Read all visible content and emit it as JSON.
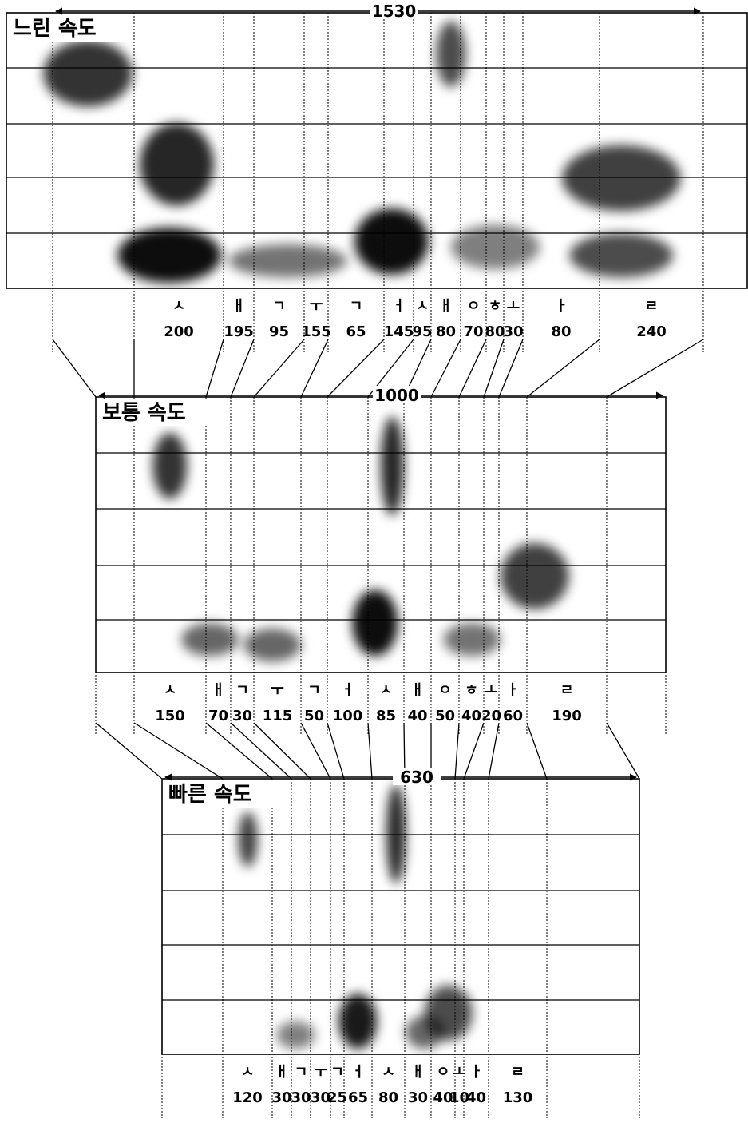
{
  "panels": [
    {
      "id": "slow",
      "title": "느린 속도",
      "total": "1530",
      "segments": [
        {
          "label": "ㅅ",
          "dur": "200"
        },
        {
          "label": "ㅐ",
          "dur": "195"
        },
        {
          "label": "ㄱ",
          "dur": "95"
        },
        {
          "label": "ㅜ",
          "dur": "155"
        },
        {
          "label": "ㄱ",
          "dur": "65"
        },
        {
          "label": "ㅓ",
          "dur": "145"
        },
        {
          "label": "ㅅ",
          "dur": "95"
        },
        {
          "label": "ㅐ",
          "dur": "80"
        },
        {
          "label": "ㅇ",
          "dur": "70"
        },
        {
          "label": "ㅎ",
          "dur": "80"
        },
        {
          "label": "ㅗ",
          "dur": "30"
        },
        {
          "label": "ㅏ",
          "dur": "80"
        },
        {
          "label": "ㄹ",
          "dur": "240"
        }
      ]
    },
    {
      "id": "normal",
      "title": "보통 속도",
      "total": "1000",
      "segments": [
        {
          "label": "ㅅ",
          "dur": "150"
        },
        {
          "label": "ㅐ",
          "dur": "70"
        },
        {
          "label": "ㄱ",
          "dur": "30"
        },
        {
          "label": "ㅜ",
          "dur": "115"
        },
        {
          "label": "ㄱ",
          "dur": "50"
        },
        {
          "label": "ㅓ",
          "dur": "100"
        },
        {
          "label": "ㅅ",
          "dur": "85"
        },
        {
          "label": "ㅐ",
          "dur": "40"
        },
        {
          "label": "ㅇ",
          "dur": "50"
        },
        {
          "label": "ㅎ",
          "dur": "40"
        },
        {
          "label": "ㅗ",
          "dur": "20"
        },
        {
          "label": "ㅏ",
          "dur": "60"
        },
        {
          "label": "ㄹ",
          "dur": "190"
        }
      ]
    },
    {
      "id": "fast",
      "title": "빠른 속도",
      "total": "630",
      "segments": [
        {
          "label": "ㅅ",
          "dur": "120"
        },
        {
          "label": "ㅐ",
          "dur": "30"
        },
        {
          "label": "ㄱ",
          "dur": "30"
        },
        {
          "label": "ㅜ",
          "dur": "30"
        },
        {
          "label": "ㄱ",
          "dur": "25"
        },
        {
          "label": "ㅓ",
          "dur": "65"
        },
        {
          "label": "ㅅ",
          "dur": "80"
        },
        {
          "label": "ㅐ",
          "dur": "30"
        },
        {
          "label": "ㅇ",
          "dur": "40"
        },
        {
          "label": "ㅗ",
          "dur": "10"
        },
        {
          "label": "ㅏ",
          "dur": "40"
        },
        {
          "label": "ㄹ",
          "dur": "130"
        }
      ]
    }
  ]
}
